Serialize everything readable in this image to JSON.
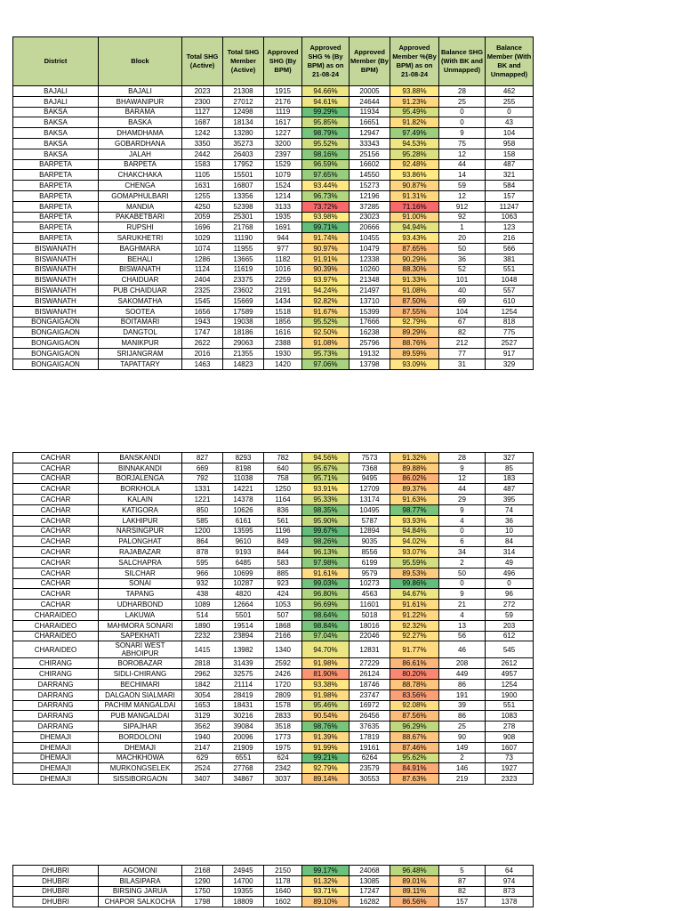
{
  "header": [
    "District",
    "Block",
    "Total SHG (Active)",
    "Total SHG Member (Active)",
    "Approved SHG (By BPM)",
    "Approved SHG % (By BPM) as on 21-08-24",
    "Approved Member (By BPM)",
    "Approved Member %(By BPM) as on 21-08-24",
    "Balance SHG (With BK and Unmapped)",
    "Balance Member (With BK and Unmapped)"
  ],
  "tables": [
    {
      "rows": [
        [
          "BAJALI",
          "BAJALI",
          2023,
          21308,
          1915,
          "94.66%",
          20005,
          "93.88%",
          28,
          462
        ],
        [
          "BAJALI",
          "BHAWANIPUR",
          2300,
          27012,
          2176,
          "94.61%",
          24644,
          "91.23%",
          25,
          255
        ],
        [
          "BAKSA",
          "BARAMA",
          1127,
          12498,
          1119,
          "99.29%",
          11934,
          "95.49%",
          0,
          0
        ],
        [
          "BAKSA",
          "BASKA",
          1687,
          18134,
          1617,
          "95.85%",
          16651,
          "91.82%",
          0,
          43
        ],
        [
          "BAKSA",
          "DHAMDHAMA",
          1242,
          13280,
          1227,
          "98.79%",
          12947,
          "97.49%",
          9,
          104
        ],
        [
          "BAKSA",
          "GOBARDHANA",
          3350,
          35273,
          3200,
          "95.52%",
          33343,
          "94.53%",
          75,
          958
        ],
        [
          "BAKSA",
          "JALAH",
          2442,
          26403,
          2397,
          "98.16%",
          25156,
          "95.28%",
          12,
          158
        ],
        [
          "BARPETA",
          "BARPETA",
          1583,
          17952,
          1529,
          "96.59%",
          16602,
          "92.48%",
          44,
          487
        ],
        [
          "BARPETA",
          "CHAKCHAKA",
          1105,
          15501,
          1079,
          "97.65%",
          14550,
          "93.86%",
          14,
          321
        ],
        [
          "BARPETA",
          "CHENGA",
          1631,
          16807,
          1524,
          "93.44%",
          15273,
          "90.87%",
          59,
          584
        ],
        [
          "BARPETA",
          "GOMAPHULBARI",
          1255,
          13356,
          1214,
          "96.73%",
          12196,
          "91.31%",
          12,
          157
        ],
        [
          "BARPETA",
          "MANDIA",
          4250,
          52398,
          3133,
          "73.72%",
          37285,
          "71.16%",
          912,
          11247
        ],
        [
          "BARPETA",
          "PAKABETBARI",
          2059,
          25301,
          1935,
          "93.98%",
          23023,
          "91.00%",
          92,
          1063
        ],
        [
          "BARPETA",
          "RUPSHI",
          1696,
          21768,
          1691,
          "99.71%",
          20666,
          "94.94%",
          1,
          123
        ],
        [
          "BARPETA",
          "SARUKHETRI",
          1029,
          11190,
          944,
          "91.74%",
          10455,
          "93.43%",
          20,
          216
        ],
        [
          "BISWANATH",
          "BAGHMARA",
          1074,
          11955,
          977,
          "90.97%",
          10479,
          "87.65%",
          50,
          566
        ],
        [
          "BISWANATH",
          "BEHALI",
          1286,
          13665,
          1182,
          "91.91%",
          12338,
          "90.29%",
          36,
          381
        ],
        [
          "BISWANATH",
          "BISWANATH",
          1124,
          11619,
          1016,
          "90.39%",
          10260,
          "88.30%",
          52,
          551
        ],
        [
          "BISWANATH",
          "CHAIDUAR",
          2404,
          23375,
          2259,
          "93.97%",
          21348,
          "91.33%",
          101,
          1048
        ],
        [
          "BISWANATH",
          "PUB CHAIDUAR",
          2325,
          23602,
          2191,
          "94.24%",
          21497,
          "91.08%",
          40,
          557
        ],
        [
          "BISWANATH",
          "SAKOMATHA",
          1545,
          15669,
          1434,
          "92.82%",
          13710,
          "87.50%",
          69,
          610
        ],
        [
          "BISWANATH",
          "SOOTEA",
          1656,
          17589,
          1518,
          "91.67%",
          15399,
          "87.55%",
          104,
          1254
        ],
        [
          "BONGAIGAON",
          "BOITAMARI",
          1943,
          19038,
          1856,
          "95.52%",
          17666,
          "92.79%",
          67,
          818
        ],
        [
          "BONGAIGAON",
          "DANGTOL",
          1747,
          18186,
          1616,
          "92.50%",
          16238,
          "89.29%",
          82,
          775
        ],
        [
          "BONGAIGAON",
          "MANIKPUR",
          2622,
          29063,
          2388,
          "91.08%",
          25796,
          "88.76%",
          212,
          2527
        ],
        [
          "BONGAIGAON",
          "SRIJANGRAM",
          2016,
          21355,
          1930,
          "95.73%",
          19132,
          "89.59%",
          77,
          917
        ],
        [
          "BONGAIGAON",
          "TAPATTARY",
          1463,
          14823,
          1420,
          "97.06%",
          13798,
          "93.09%",
          31,
          329
        ]
      ]
    },
    {
      "rows": [
        [
          "CACHAR",
          "BANSKANDI",
          827,
          8293,
          782,
          "94.56%",
          7573,
          "91.32%",
          28,
          327
        ],
        [
          "CACHAR",
          "BINNAKANDI",
          669,
          8198,
          640,
          "95.67%",
          7368,
          "89.88%",
          9,
          85
        ],
        [
          "CACHAR",
          "BORJALENGA",
          792,
          11038,
          758,
          "95.71%",
          9495,
          "86.02%",
          12,
          183
        ],
        [
          "CACHAR",
          "BORKHOLA",
          1331,
          14221,
          1250,
          "93.91%",
          12709,
          "89.37%",
          44,
          487
        ],
        [
          "CACHAR",
          "KALAIN",
          1221,
          14378,
          1164,
          "95.33%",
          13174,
          "91.63%",
          29,
          395
        ],
        [
          "CACHAR",
          "KATIGORA",
          850,
          10626,
          836,
          "98.35%",
          10495,
          "98.77%",
          9,
          74
        ],
        [
          "CACHAR",
          "LAKHIPUR",
          585,
          6161,
          561,
          "95.90%",
          5787,
          "93.93%",
          4,
          36
        ],
        [
          "CACHAR",
          "NARSINGPUR",
          1200,
          13595,
          1196,
          "99.67%",
          12894,
          "94.84%",
          0,
          10
        ],
        [
          "CACHAR",
          "PALONGHAT",
          864,
          9610,
          849,
          "98.26%",
          9035,
          "94.02%",
          6,
          84
        ],
        [
          "CACHAR",
          "RAJABAZAR",
          878,
          9193,
          844,
          "96.13%",
          8556,
          "93.07%",
          34,
          314
        ],
        [
          "CACHAR",
          "SALCHAPRA",
          595,
          6485,
          583,
          "97.98%",
          6199,
          "95.59%",
          2,
          49
        ],
        [
          "CACHAR",
          "SILCHAR",
          966,
          10699,
          885,
          "91.61%",
          9579,
          "89.53%",
          50,
          496
        ],
        [
          "CACHAR",
          "SONAI",
          932,
          10287,
          923,
          "99.03%",
          10273,
          "99.86%",
          0,
          0
        ],
        [
          "CACHAR",
          "TAPANG",
          438,
          4820,
          424,
          "96.80%",
          4563,
          "94.67%",
          9,
          96
        ],
        [
          "CACHAR",
          "UDHARBOND",
          1089,
          12664,
          1053,
          "96.69%",
          11601,
          "91.61%",
          21,
          272
        ],
        [
          "CHARAIDEO",
          "LAKUWA",
          514,
          5501,
          507,
          "98.64%",
          5018,
          "91.22%",
          4,
          59
        ],
        [
          "CHARAIDEO",
          "MAHMORA SONARI",
          1890,
          19514,
          1868,
          "98.84%",
          18016,
          "92.32%",
          13,
          203
        ],
        [
          "CHARAIDEO",
          "SAPEKHATI",
          2232,
          23894,
          2166,
          "97.04%",
          22046,
          "92.27%",
          56,
          612
        ],
        [
          "CHARAIDEO",
          "SONARI  WEST ABHOIPUR",
          1415,
          13982,
          1340,
          "94.70%",
          12831,
          "91.77%",
          46,
          545
        ],
        [
          "CHIRANG",
          "BOROBAZAR",
          2818,
          31439,
          2592,
          "91.98%",
          27229,
          "86.61%",
          208,
          2612
        ],
        [
          "CHIRANG",
          "SIDLI-CHIRANG",
          2962,
          32575,
          2426,
          "81.90%",
          26124,
          "80.20%",
          449,
          4957
        ],
        [
          "DARRANG",
          "BECHIMARI",
          1842,
          21114,
          1720,
          "93.38%",
          18746,
          "88.78%",
          86,
          1254
        ],
        [
          "DARRANG",
          "DALGAON SIALMARI",
          3054,
          28419,
          2809,
          "91.98%",
          23747,
          "83.56%",
          191,
          1900
        ],
        [
          "DARRANG",
          "PACHIM MANGALDAI",
          1653,
          18431,
          1578,
          "95.46%",
          16972,
          "92.08%",
          39,
          551
        ],
        [
          "DARRANG",
          "PUB MANGALDAI",
          3129,
          30216,
          2833,
          "90.54%",
          26456,
          "87.56%",
          86,
          1083
        ],
        [
          "DARRANG",
          "SIPAJHAR",
          3562,
          39084,
          3518,
          "98.76%",
          37635,
          "96.29%",
          25,
          278
        ],
        [
          "DHEMAJI",
          "BORDOLONI",
          1940,
          20096,
          1773,
          "91.39%",
          17819,
          "88.67%",
          90,
          908
        ],
        [
          "DHEMAJI",
          "DHEMAJI",
          2147,
          21909,
          1975,
          "91.99%",
          19161,
          "87.46%",
          149,
          1607
        ],
        [
          "DHEMAJI",
          "MACHKHOWA",
          629,
          6551,
          624,
          "99.21%",
          6264,
          "95.62%",
          2,
          73
        ],
        [
          "DHEMAJI",
          "MURKONGSELEK",
          2524,
          27768,
          2342,
          "92.79%",
          23579,
          "84.91%",
          146,
          1927
        ],
        [
          "DHEMAJI",
          "SISSIBORGAON",
          3407,
          34867,
          3037,
          "89.14%",
          30553,
          "87.63%",
          219,
          2323
        ]
      ]
    },
    {
      "rows": [
        [
          "DHUBRI",
          "AGOMONI",
          2168,
          24945,
          2150,
          "99.17%",
          24068,
          "96.48%",
          5,
          64
        ],
        [
          "DHUBRI",
          "BILASIPARA",
          1290,
          14700,
          1178,
          "91.32%",
          13085,
          "89.01%",
          87,
          974
        ],
        [
          "DHUBRI",
          "BIRSING JARUA",
          1750,
          19355,
          1640,
          "93.71%",
          17247,
          "89.11%",
          82,
          873
        ],
        [
          "DHUBRI",
          "CHAPOR SALKOCHA",
          1798,
          18809,
          1602,
          "89.10%",
          16282,
          "86.56%",
          157,
          1378
        ]
      ]
    }
  ]
}
